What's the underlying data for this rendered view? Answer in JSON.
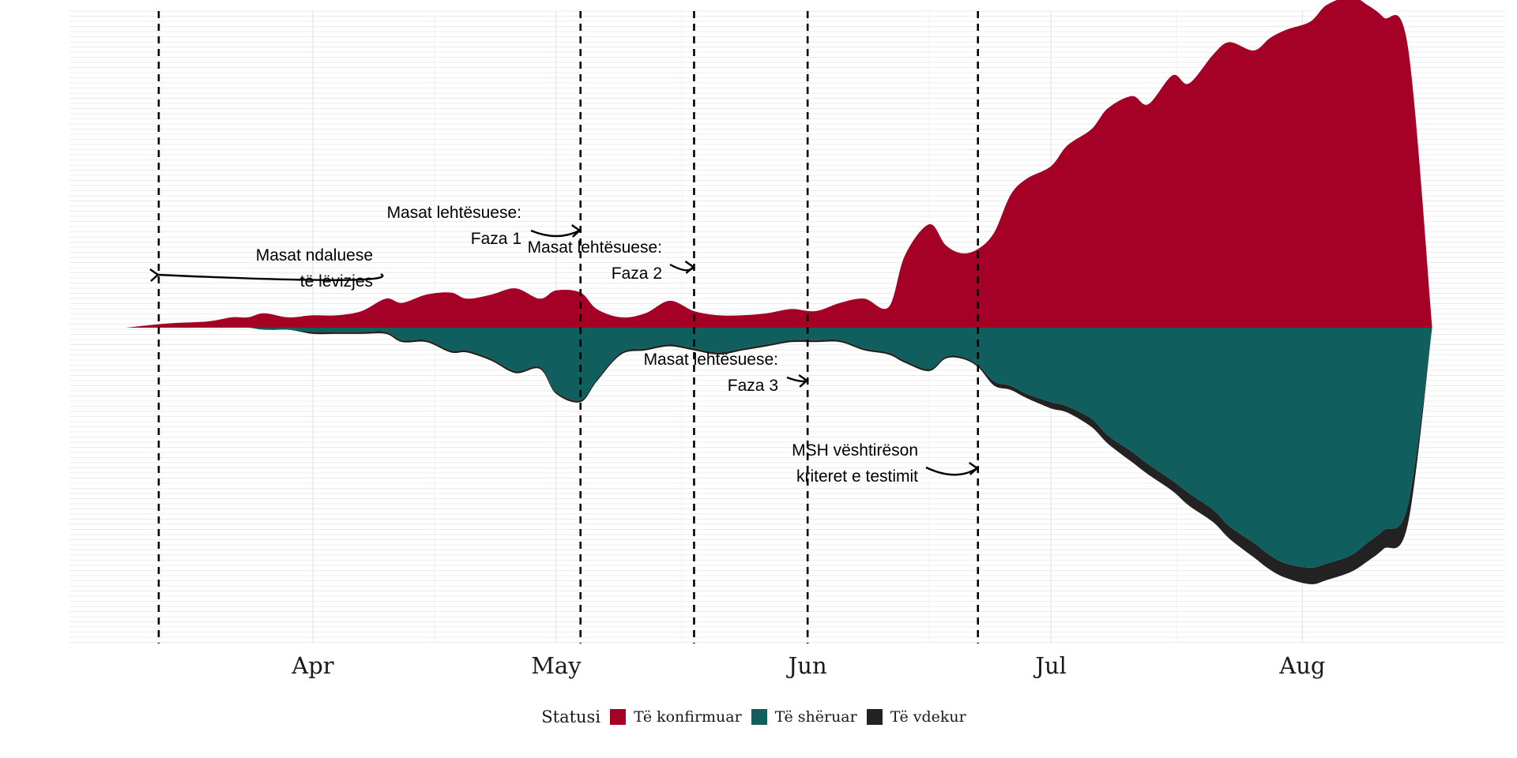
{
  "chart_data": {
    "type": "area",
    "subtype": "streamgraph",
    "title": "",
    "xlabel": "",
    "ylabel": "",
    "x_axis": {
      "type": "date",
      "ticks": [
        {
          "label": "Apr",
          "date": "2020-04-01"
        },
        {
          "label": "May",
          "date": "2020-05-01"
        },
        {
          "label": "Jun",
          "date": "2020-06-01"
        },
        {
          "label": "Jul",
          "date": "2020-07-01"
        },
        {
          "label": "Aug",
          "date": "2020-08-01"
        }
      ],
      "range": [
        "2020-03-02",
        "2020-08-26"
      ]
    },
    "y_axis": {
      "tick_labels_visible": false
    },
    "grid": true,
    "legend": {
      "position": "bottom",
      "title": "Statusi",
      "items": [
        {
          "key": "confirmed",
          "label": "Të konfirmuar",
          "color": "#a50026"
        },
        {
          "key": "recovered",
          "label": "Të shëruar",
          "color": "#115e5f"
        },
        {
          "key": "deaths",
          "label": "Të vdekur",
          "color": "#222222"
        }
      ]
    },
    "series_dates": [
      "2020-03-09",
      "2020-03-14",
      "2020-03-19",
      "2020-03-22",
      "2020-03-24",
      "2020-03-26",
      "2020-03-29",
      "2020-04-01",
      "2020-04-04",
      "2020-04-07",
      "2020-04-10",
      "2020-04-12",
      "2020-04-15",
      "2020-04-18",
      "2020-04-20",
      "2020-04-23",
      "2020-04-26",
      "2020-04-29",
      "2020-05-01",
      "2020-05-04",
      "2020-05-06",
      "2020-05-09",
      "2020-05-12",
      "2020-05-15",
      "2020-05-18",
      "2020-05-21",
      "2020-05-24",
      "2020-05-27",
      "2020-05-30",
      "2020-06-02",
      "2020-06-05",
      "2020-06-08",
      "2020-06-11",
      "2020-06-13",
      "2020-06-16",
      "2020-06-18",
      "2020-06-20",
      "2020-06-22",
      "2020-06-24",
      "2020-06-26",
      "2020-06-28",
      "2020-07-01",
      "2020-07-03",
      "2020-07-06",
      "2020-07-08",
      "2020-07-11",
      "2020-07-13",
      "2020-07-16",
      "2020-07-18",
      "2020-07-21",
      "2020-07-23",
      "2020-07-26",
      "2020-07-28",
      "2020-07-30",
      "2020-08-02",
      "2020-08-04",
      "2020-08-07",
      "2020-08-09",
      "2020-08-11",
      "2020-08-14",
      "2020-08-17"
    ],
    "series": [
      {
        "name": "Të konfirmuar",
        "key": "confirmed",
        "color": "#a50026",
        "values": [
          0,
          2,
          3,
          5,
          5,
          7,
          5,
          6,
          6,
          8,
          14,
          12,
          16,
          17,
          14,
          16,
          19,
          14,
          18,
          17,
          9,
          5,
          7,
          13,
          8,
          6,
          6,
          7,
          9,
          8,
          12,
          14,
          10,
          35,
          50,
          40,
          36,
          38,
          46,
          64,
          72,
          78,
          88,
          96,
          106,
          112,
          108,
          122,
          118,
          132,
          138,
          134,
          140,
          144,
          148,
          156,
          160,
          156,
          150,
          136,
          0
        ]
      },
      {
        "name": "Të shëruar",
        "key": "recovered",
        "color": "#115e5f",
        "values": [
          0,
          0,
          0,
          0,
          0,
          1,
          1,
          2,
          2,
          2,
          2,
          6,
          6,
          11,
          11,
          15,
          21,
          19,
          31,
          35,
          25,
          12,
          10,
          8,
          10,
          12,
          10,
          8,
          6,
          6,
          6,
          10,
          12,
          16,
          20,
          14,
          14,
          18,
          26,
          28,
          32,
          36,
          38,
          44,
          52,
          60,
          66,
          74,
          80,
          88,
          96,
          104,
          110,
          114,
          116,
          114,
          110,
          104,
          98,
          86,
          0
        ]
      },
      {
        "name": "Të vdekur",
        "key": "deaths",
        "color": "#222222",
        "values": [
          0,
          0,
          0,
          0,
          0,
          0,
          0,
          1,
          1,
          1,
          1,
          1,
          1,
          1,
          1,
          1,
          1,
          1,
          1,
          1,
          1,
          1,
          1,
          1,
          1,
          1,
          1,
          1,
          1,
          1,
          1,
          1,
          1,
          1,
          1,
          1,
          1,
          1,
          2,
          2,
          2,
          3,
          3,
          4,
          4,
          5,
          5,
          5,
          6,
          6,
          6,
          7,
          7,
          7,
          8,
          8,
          8,
          9,
          9,
          9,
          0
        ]
      }
    ],
    "event_lines": [
      {
        "date": "2020-03-13",
        "label_lines": [
          "Masat ndaluese",
          "të lëvizjes"
        ]
      },
      {
        "date": "2020-05-04",
        "label_lines": [
          "Masat lehtësuese:",
          "Faza 1"
        ]
      },
      {
        "date": "2020-05-18",
        "label_lines": [
          "Masat lehtësuese:",
          "Faza 2"
        ]
      },
      {
        "date": "2020-06-01",
        "label_lines": [
          "Masat lehtësuese:",
          "Faza 3"
        ]
      },
      {
        "date": "2020-06-22",
        "label_lines": [
          "MSH vështirëson",
          "kriteret e testimit"
        ]
      }
    ]
  }
}
